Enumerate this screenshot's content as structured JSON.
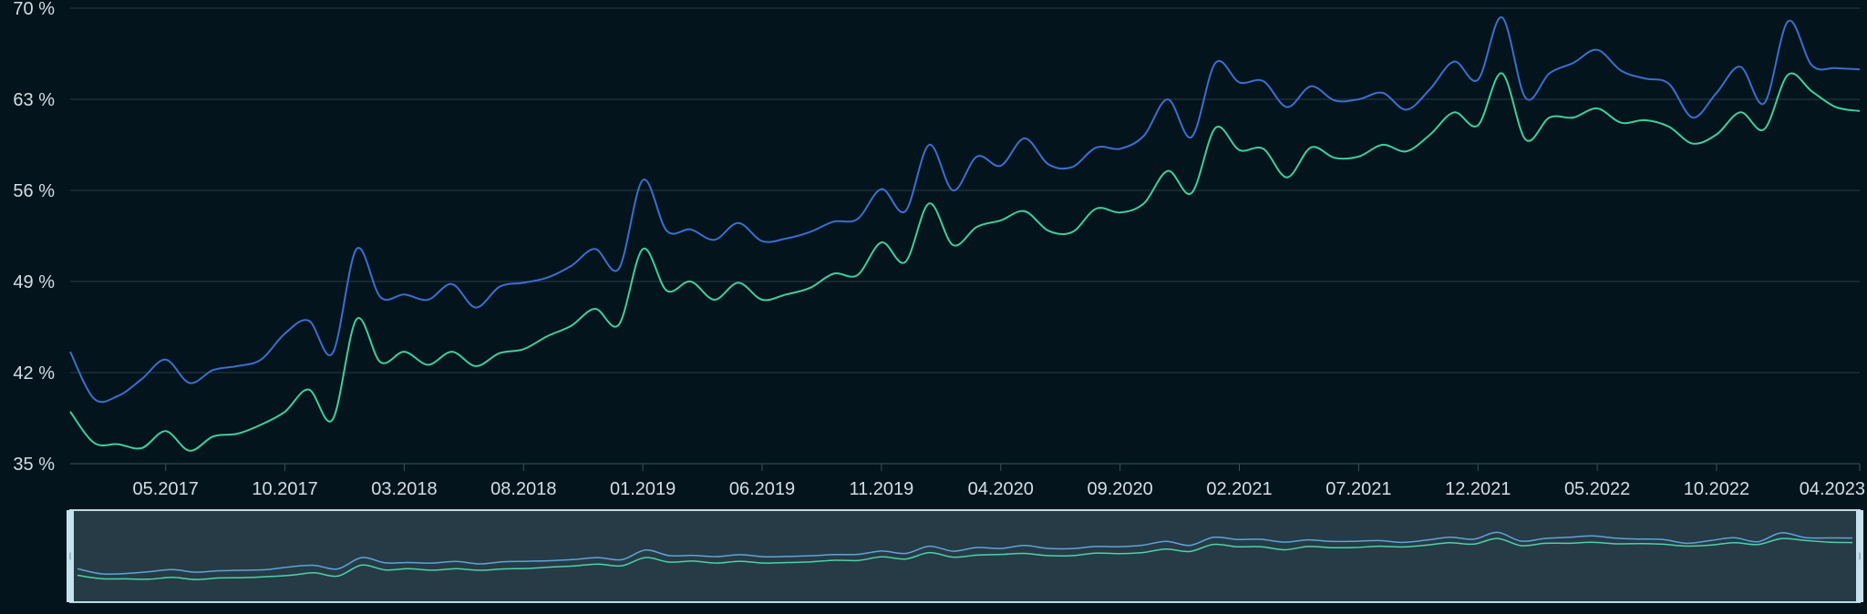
{
  "chart_data": {
    "type": "line",
    "title": "",
    "xlabel": "",
    "ylabel": "",
    "ylim": [
      35,
      70
    ],
    "y_ticks": [
      "35 %",
      "42 %",
      "49 %",
      "56 %",
      "63 %",
      "70 %"
    ],
    "x_ticks": [
      "05.2017",
      "10.2017",
      "03.2018",
      "08.2018",
      "01.2019",
      "06.2019",
      "11.2019",
      "04.2020",
      "09.2020",
      "02.2021",
      "07.2021",
      "12.2021",
      "05.2022",
      "10.2022",
      "04.2023"
    ],
    "grid": "horizontal",
    "x": [
      "01.2017",
      "02.2017",
      "03.2017",
      "04.2017",
      "05.2017",
      "06.2017",
      "07.2017",
      "08.2017",
      "09.2017",
      "10.2017",
      "11.2017",
      "12.2017",
      "01.2018",
      "02.2018",
      "03.2018",
      "04.2018",
      "05.2018",
      "06.2018",
      "07.2018",
      "08.2018",
      "09.2018",
      "10.2018",
      "11.2018",
      "12.2018",
      "01.2019",
      "02.2019",
      "03.2019",
      "04.2019",
      "05.2019",
      "06.2019",
      "07.2019",
      "08.2019",
      "09.2019",
      "10.2019",
      "11.2019",
      "12.2019",
      "01.2020",
      "02.2020",
      "03.2020",
      "04.2020",
      "05.2020",
      "06.2020",
      "07.2020",
      "08.2020",
      "09.2020",
      "10.2020",
      "11.2020",
      "12.2020",
      "01.2021",
      "02.2021",
      "03.2021",
      "04.2021",
      "05.2021",
      "06.2021",
      "07.2021",
      "08.2021",
      "09.2021",
      "10.2021",
      "11.2021",
      "12.2021",
      "01.2022",
      "02.2022",
      "03.2022",
      "04.2022",
      "05.2022",
      "06.2022",
      "07.2022",
      "08.2022",
      "09.2022",
      "10.2022",
      "11.2022",
      "12.2022",
      "01.2023",
      "02.2023",
      "03.2023",
      "04.2023"
    ],
    "series": [
      {
        "color": "#3a6fd1",
        "values": [
          43.6,
          40.0,
          40.2,
          41.5,
          43.0,
          41.2,
          42.2,
          42.5,
          43.0,
          45.0,
          46.0,
          43.5,
          51.5,
          47.8,
          48.0,
          47.6,
          48.8,
          47.0,
          48.6,
          48.9,
          49.3,
          50.2,
          51.5,
          50.0,
          56.8,
          52.9,
          53.0,
          52.2,
          53.5,
          52.1,
          52.3,
          52.8,
          53.6,
          53.8,
          56.1,
          54.4,
          59.5,
          56.0,
          58.6,
          57.9,
          60.0,
          58.0,
          57.8,
          59.3,
          59.2,
          60.2,
          63.0,
          60.1,
          65.8,
          64.3,
          64.4,
          62.4,
          64.0,
          62.9,
          63.0,
          63.5,
          62.2,
          63.8,
          65.9,
          64.5,
          69.3,
          63.1,
          65.0,
          65.8,
          66.8,
          65.2,
          64.6,
          64.2,
          61.6,
          63.5,
          65.5,
          62.7,
          69.0,
          65.6,
          65.4,
          65.3
        ]
      },
      {
        "color": "#3ecf9e",
        "values": [
          39.0,
          36.6,
          36.5,
          36.2,
          37.5,
          36.0,
          37.1,
          37.3,
          38.0,
          39.0,
          40.7,
          38.4,
          46.1,
          42.8,
          43.6,
          42.6,
          43.6,
          42.5,
          43.5,
          43.8,
          44.8,
          45.6,
          46.9,
          45.7,
          51.5,
          48.3,
          49.0,
          47.6,
          48.9,
          47.6,
          48.0,
          48.5,
          49.6,
          49.5,
          52.0,
          50.5,
          55.0,
          51.8,
          53.2,
          53.7,
          54.4,
          52.9,
          52.8,
          54.6,
          54.3,
          55.0,
          57.5,
          55.8,
          60.8,
          59.1,
          59.2,
          57.0,
          59.3,
          58.5,
          58.6,
          59.5,
          59.0,
          60.3,
          62.0,
          61.0,
          65.0,
          59.9,
          61.6,
          61.6,
          62.3,
          61.2,
          61.4,
          60.9,
          59.6,
          60.3,
          62.0,
          60.7,
          64.9,
          63.6,
          62.4,
          62.1
        ]
      }
    ],
    "navigator": {
      "visible": true
    }
  }
}
